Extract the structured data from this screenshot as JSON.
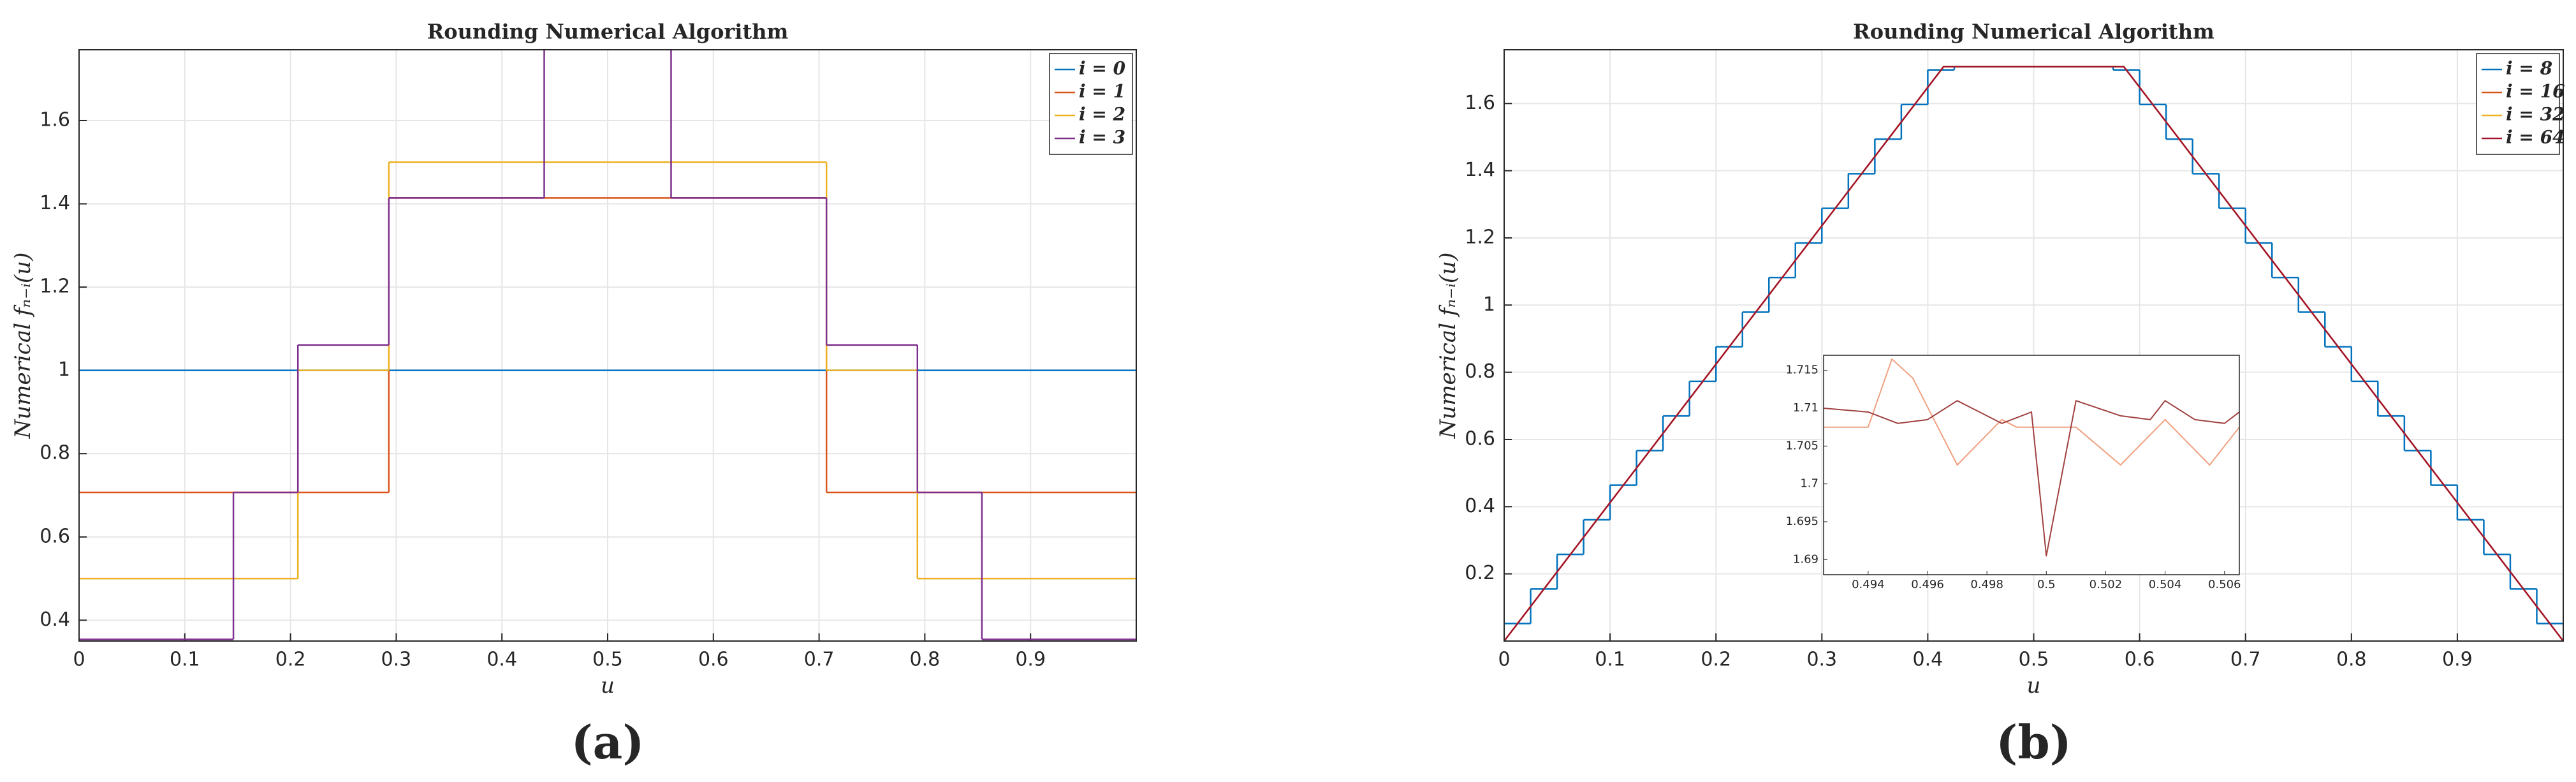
{
  "chart_data": [
    {
      "type": "line",
      "title": "Rounding Numerical Algorithm",
      "caption": "(a)",
      "xlabel": "u",
      "ylabel": "Numerical fₙ₋ᵢ(u)",
      "xlim": [
        0,
        1
      ],
      "xticks": [
        0,
        0.1,
        0.2,
        0.3,
        0.4,
        0.5,
        0.6,
        0.7,
        0.8,
        0.9
      ],
      "ylim": [
        0.35,
        1.77
      ],
      "yticks": [
        0.4,
        0.6,
        0.8,
        1,
        1.2,
        1.4,
        1.6
      ],
      "grid": true,
      "legend": "upper right",
      "drawstyle": "steps-post",
      "series": [
        {
          "name": "i = 0",
          "color": "#0072BD",
          "x": [
            0
          ],
          "values": [
            1
          ]
        },
        {
          "name": "i = 1",
          "color": "#D95319",
          "x": [
            0,
            0.293,
            0.707
          ],
          "values": [
            0.707,
            1.414,
            0.707
          ]
        },
        {
          "name": "i = 2",
          "color": "#EDB120",
          "x": [
            0,
            0.207,
            0.293,
            0.707,
            0.793
          ],
          "values": [
            0.5,
            1,
            1.5,
            1,
            0.5
          ]
        },
        {
          "name": "i = 3",
          "color": "#7E2F8E",
          "x": [
            0,
            0.146,
            0.207,
            0.293,
            0.44,
            0.56,
            0.707,
            0.793,
            0.854
          ],
          "values": [
            0.354,
            0.707,
            1.061,
            1.414,
            1.8,
            1.414,
            1.061,
            0.707,
            0.354
          ]
        }
      ]
    },
    {
      "type": "line",
      "title": "Rounding Numerical Algorithm",
      "caption": "(b)",
      "xlabel": "u",
      "ylabel": "Numerical fₙ₋ᵢ(u)",
      "xlim": [
        0,
        1
      ],
      "xticks": [
        0,
        0.1,
        0.2,
        0.3,
        0.4,
        0.5,
        0.6,
        0.7,
        0.8,
        0.9
      ],
      "ylim": [
        0,
        1.76
      ],
      "yticks": [
        0.2,
        0.4,
        0.6,
        0.8,
        1,
        1.2,
        1.4,
        1.6
      ],
      "grid": true,
      "legend": "upper right",
      "series": [
        {
          "name": "i = 8",
          "color": "#0072BD",
          "drawstyle": "steps-post",
          "x": [
            0,
            0.025,
            0.05,
            0.075,
            0.1,
            0.125,
            0.15,
            0.175,
            0.2,
            0.225,
            0.25,
            0.275,
            0.3,
            0.325,
            0.35,
            0.375,
            0.4,
            0.425,
            0.45,
            0.475,
            0.5,
            0.525,
            0.55,
            0.575,
            0.6,
            0.625,
            0.65,
            0.675,
            0.7,
            0.725,
            0.75,
            0.775,
            0.8,
            0.825,
            0.85,
            0.875,
            0.9,
            0.925,
            0.95,
            0.975
          ],
          "values": [
            0.052,
            0.155,
            0.258,
            0.361,
            0.464,
            0.567,
            0.67,
            0.773,
            0.876,
            0.979,
            1.082,
            1.185,
            1.288,
            1.391,
            1.494,
            1.597,
            1.7,
            1.71,
            1.71,
            1.71,
            1.71,
            1.71,
            1.71,
            1.7,
            1.597,
            1.494,
            1.391,
            1.288,
            1.185,
            1.082,
            0.979,
            0.876,
            0.773,
            0.67,
            0.567,
            0.464,
            0.361,
            0.258,
            0.155,
            0.052
          ]
        },
        {
          "name": "i = 16",
          "color": "#D95319",
          "x": [
            0,
            0.415,
            0.585,
            1
          ],
          "values": [
            0,
            1.71,
            1.71,
            0
          ]
        },
        {
          "name": "i = 32",
          "color": "#EDB120",
          "x": [
            0,
            0.415,
            0.585,
            1
          ],
          "values": [
            0,
            1.71,
            1.71,
            0
          ]
        },
        {
          "name": "i = 64",
          "color": "#A2142F",
          "x": [
            0,
            0.415,
            0.585,
            1
          ],
          "values": [
            0,
            1.71,
            1.71,
            0
          ]
        }
      ],
      "inset": {
        "type": "line",
        "xlim": [
          0.4925,
          0.5065
        ],
        "xticks": [
          0.494,
          0.496,
          0.498,
          0.5,
          0.502,
          0.504,
          0.506
        ],
        "ylim": [
          1.688,
          1.717
        ],
        "yticks": [
          1.69,
          1.695,
          1.7,
          1.705,
          1.71,
          1.715
        ],
        "series": [
          {
            "color": "#F0A080",
            "x": [
              0.4925,
              0.494,
              0.4948,
              0.4955,
              0.497,
              0.4985,
              0.499,
              0.5,
              0.501,
              0.5025,
              0.504,
              0.5055,
              0.5065
            ],
            "values": [
              1.7075,
              1.7075,
              1.7165,
              1.714,
              1.7025,
              1.7085,
              1.7075,
              1.7075,
              1.7075,
              1.7025,
              1.7085,
              1.7025,
              1.7075
            ]
          },
          {
            "color": "#A04040",
            "x": [
              0.4925,
              0.494,
              0.495,
              0.496,
              0.497,
              0.4985,
              0.4995,
              0.5,
              0.501,
              0.5025,
              0.5035,
              0.504,
              0.505,
              0.506,
              0.5065
            ],
            "values": [
              1.71,
              1.7095,
              1.708,
              1.7085,
              1.711,
              1.708,
              1.7095,
              1.6905,
              1.711,
              1.709,
              1.7085,
              1.711,
              1.7085,
              1.708,
              1.7095
            ]
          }
        ]
      }
    }
  ]
}
